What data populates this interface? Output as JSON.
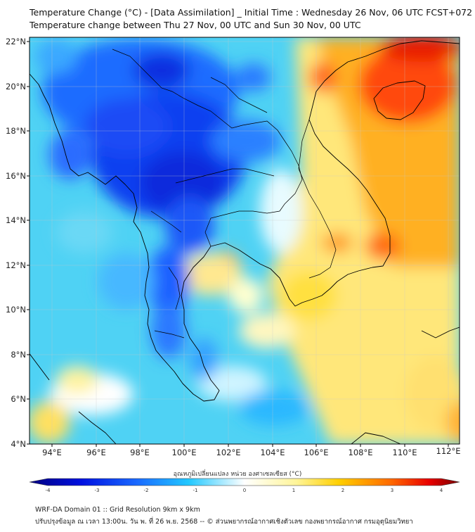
{
  "title_line1": "Temperature Change (°C) - [Data Assimilation] _ Initial Time : Wednesday 26 Nov, 06 UTC FCST+072",
  "title_line2": "Temperature change between Thu 27 Nov, 00 UTC and Sun 30 Nov, 00 UTC",
  "lat_labels": [
    "22°N",
    "20°N",
    "18°N",
    "16°N",
    "14°N",
    "12°N",
    "10°N",
    "8°N",
    "6°N",
    "4°N"
  ],
  "lon_labels": [
    "94°E",
    "96°E",
    "98°E",
    "100°E",
    "102°E",
    "104°E",
    "106°E",
    "108°E",
    "110°E",
    "112°E"
  ],
  "colorbar": {
    "title": "อุณหภูมิเปลี่ยนแปลง หน่วย องศาเซลเซียส (°C)",
    "ticks": [
      "-4",
      "-3",
      "-2",
      "-1",
      "0",
      "1",
      "2",
      "3",
      "4"
    ],
    "range": [
      -4,
      4
    ],
    "colors": [
      "#00008b",
      "#0000e0",
      "#1e5aff",
      "#00b4ff",
      "#c8f0ff",
      "#ffffff",
      "#ffffc8",
      "#fff000",
      "#ffa000",
      "#ff2800",
      "#8b0000"
    ]
  },
  "footer_line1": "WRF-DA Domain 01 :: Grid Resolution 9km x 9km",
  "footer_line2": "ปรับปรุงข้อมูล ณ เวลา 13:00น. วัน พ. ที่ 26 พ.ย. 2568 -- © ส่วนพยากรณ์อากาศเชิงตัวเลข กองพยากรณ์อากาศ กรมอุตุนิยมวิทยา"
}
